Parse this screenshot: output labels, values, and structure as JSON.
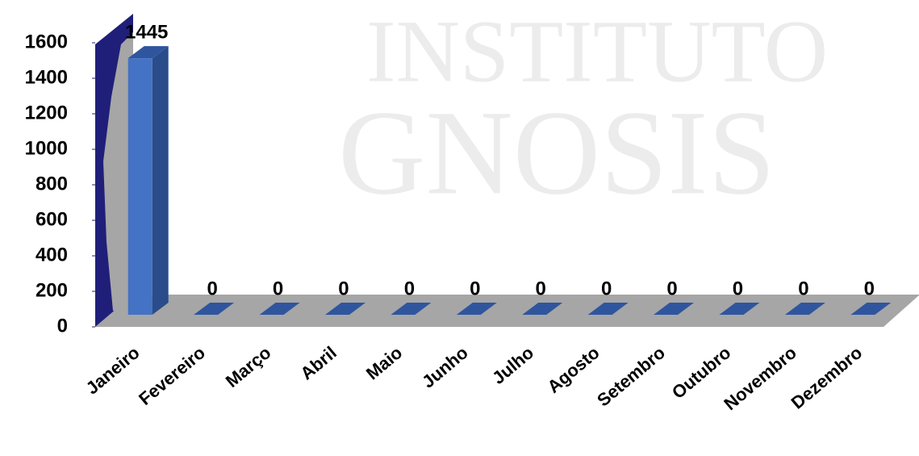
{
  "chart_data": {
    "type": "bar",
    "watermark": [
      "INSTITUTO",
      "GNOSIS"
    ],
    "categories": [
      "Janeiro",
      "Fevereiro",
      "Março",
      "Abril",
      "Maio",
      "Junho",
      "Julho",
      "Agosto",
      "Setembro",
      "Outubro",
      "Novembro",
      "Dezembro"
    ],
    "values": [
      1445,
      0,
      0,
      0,
      0,
      0,
      0,
      0,
      0,
      0,
      0,
      0
    ],
    "color": "#4472c4",
    "ylim": [
      0,
      1600
    ],
    "yticks": [
      0,
      200,
      400,
      600,
      800,
      1000,
      1200,
      1400,
      1600
    ],
    "grid": false
  }
}
